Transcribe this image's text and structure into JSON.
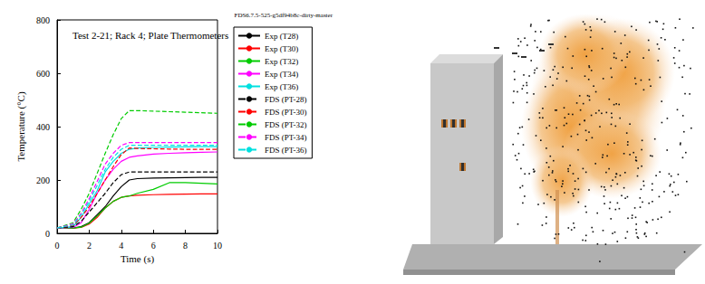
{
  "chart_data": {
    "type": "line",
    "title": "Test 2-21; Rack 4; Plate Thermometers",
    "subtitle": "FDS6.7.5-525-g5df94b8c-dirty-master",
    "x_label": "Time (s)",
    "y_label": "Temperature (°C)",
    "x": [
      0,
      1,
      1.5,
      2,
      2.5,
      3,
      3.5,
      4,
      4.5,
      5,
      6,
      7,
      8,
      9,
      10
    ],
    "xlim": [
      0,
      10
    ],
    "xticks": [
      0,
      2,
      4,
      6,
      8,
      10
    ],
    "ylim": [
      0,
      800
    ],
    "yticks": [
      0,
      200,
      400,
      600,
      800
    ],
    "grid": false,
    "legend": "right",
    "series": [
      {
        "name": "Exp (T28)",
        "color": "#000000",
        "line_style": "solid",
        "values": [
          20,
          20,
          25,
          40,
          70,
          100,
          140,
          175,
          200,
          205,
          207,
          208,
          209,
          210,
          210
        ]
      },
      {
        "name": "Exp (T30)",
        "color": "#ff0000",
        "line_style": "solid",
        "values": [
          20,
          20,
          22,
          35,
          60,
          95,
          120,
          135,
          140,
          143,
          145,
          146,
          147,
          148,
          148
        ]
      },
      {
        "name": "Exp (T32)",
        "color": "#00cc00",
        "line_style": "solid",
        "values": [
          20,
          20,
          23,
          38,
          65,
          95,
          120,
          135,
          140,
          150,
          165,
          190,
          190,
          188,
          185
        ]
      },
      {
        "name": "Exp (T34)",
        "color": "#ff00ff",
        "line_style": "solid",
        "values": [
          20,
          22,
          40,
          90,
          150,
          200,
          240,
          270,
          285,
          290,
          297,
          300,
          302,
          304,
          305
        ]
      },
      {
        "name": "Exp (T36)",
        "color": "#00e0e0",
        "line_style": "solid",
        "values": [
          20,
          25,
          60,
          110,
          160,
          230,
          270,
          300,
          315,
          320,
          322,
          323,
          324,
          325,
          325
        ]
      },
      {
        "name": "FDS (PT-28)",
        "color": "#000000",
        "line_style": "dashed",
        "values": [
          20,
          25,
          45,
          80,
          115,
          150,
          190,
          220,
          230,
          230,
          230,
          230,
          230,
          230,
          230
        ]
      },
      {
        "name": "FDS (PT-30)",
        "color": "#ff0000",
        "line_style": "dashed",
        "values": [
          20,
          30,
          60,
          100,
          150,
          200,
          250,
          295,
          320,
          318,
          317,
          316,
          315,
          315,
          315
        ]
      },
      {
        "name": "FDS (PT-32)",
        "color": "#00cc00",
        "line_style": "dashed",
        "values": [
          20,
          40,
          90,
          150,
          225,
          300,
          370,
          430,
          460,
          460,
          458,
          456,
          454,
          452,
          450
        ]
      },
      {
        "name": "FDS (PT-34)",
        "color": "#ff00ff",
        "line_style": "dashed",
        "values": [
          20,
          35,
          75,
          130,
          195,
          260,
          300,
          330,
          340,
          340,
          340,
          340,
          340,
          340,
          340
        ]
      },
      {
        "name": "FDS (PT-36)",
        "color": "#00e0e0",
        "line_style": "dashed",
        "values": [
          20,
          32,
          70,
          120,
          180,
          240,
          285,
          315,
          330,
          330,
          330,
          330,
          330,
          330,
          330
        ]
      }
    ]
  }
}
